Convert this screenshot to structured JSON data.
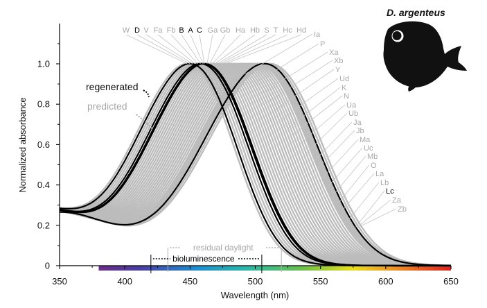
{
  "chart_data": {
    "type": "line",
    "title": "D. argenteus",
    "xlabel": "Wavelength (nm)",
    "ylabel": "Normalized absorbance",
    "xlim": [
      350,
      650
    ],
    "ylim": [
      0,
      1.0
    ],
    "x_ticks": [
      "350",
      "400",
      "450",
      "500",
      "550",
      "600",
      "650"
    ],
    "y_ticks": [
      "0",
      "0.2",
      "0.4",
      "0.6",
      "0.8",
      "1.0"
    ],
    "grid": false,
    "legend": [
      {
        "label": "regenerated",
        "color": "#000000"
      },
      {
        "label": "predicted",
        "color": "#a8a8a8"
      }
    ],
    "light_ranges": [
      {
        "label": "residual daylight",
        "range": [
          433,
          520
        ],
        "color": "#a8a8a8"
      },
      {
        "label": "bioluminescence",
        "range": [
          420,
          505
        ],
        "color": "#000000"
      }
    ],
    "spectrum_bar": {
      "range": [
        380,
        650
      ]
    },
    "series": [
      {
        "name": "W",
        "lambda_max": 448,
        "status": "predicted"
      },
      {
        "name": "D",
        "lambda_max": 450,
        "status": "regenerated"
      },
      {
        "name": "V",
        "lambda_max": 452,
        "status": "predicted"
      },
      {
        "name": "Fa",
        "lambda_max": 454,
        "status": "predicted"
      },
      {
        "name": "Fb",
        "lambda_max": 456,
        "status": "predicted"
      },
      {
        "name": "B",
        "lambda_max": 458,
        "status": "regenerated"
      },
      {
        "name": "A",
        "lambda_max": 460,
        "status": "regenerated"
      },
      {
        "name": "C",
        "lambda_max": 461,
        "status": "regenerated"
      },
      {
        "name": "Ga",
        "lambda_max": 463,
        "status": "predicted"
      },
      {
        "name": "Gb",
        "lambda_max": 465,
        "status": "predicted"
      },
      {
        "name": "Ha",
        "lambda_max": 467,
        "status": "predicted"
      },
      {
        "name": "Hb",
        "lambda_max": 469,
        "status": "predicted"
      },
      {
        "name": "S",
        "lambda_max": 471,
        "status": "predicted"
      },
      {
        "name": "T",
        "lambda_max": 473,
        "status": "predicted"
      },
      {
        "name": "Hc",
        "lambda_max": 475,
        "status": "predicted"
      },
      {
        "name": "Hd",
        "lambda_max": 477,
        "status": "predicted"
      },
      {
        "name": "Ia",
        "lambda_max": 479,
        "status": "predicted"
      },
      {
        "name": "P",
        "lambda_max": 481,
        "status": "predicted"
      },
      {
        "name": "Xa",
        "lambda_max": 483,
        "status": "predicted"
      },
      {
        "name": "Xb",
        "lambda_max": 485,
        "status": "predicted"
      },
      {
        "name": "Y",
        "lambda_max": 487,
        "status": "predicted"
      },
      {
        "name": "Ud",
        "lambda_max": 489,
        "status": "predicted"
      },
      {
        "name": "K",
        "lambda_max": 491,
        "status": "predicted"
      },
      {
        "name": "N",
        "lambda_max": 493,
        "status": "predicted"
      },
      {
        "name": "Ua",
        "lambda_max": 495,
        "status": "predicted"
      },
      {
        "name": "Ub",
        "lambda_max": 497,
        "status": "predicted"
      },
      {
        "name": "Ja",
        "lambda_max": 499,
        "status": "predicted"
      },
      {
        "name": "Jb",
        "lambda_max": 501,
        "status": "predicted"
      },
      {
        "name": "Ma",
        "lambda_max": 502,
        "status": "predicted"
      },
      {
        "name": "Uc",
        "lambda_max": 503,
        "status": "predicted"
      },
      {
        "name": "Mb",
        "lambda_max": 504,
        "status": "predicted"
      },
      {
        "name": "O",
        "lambda_max": 505,
        "status": "predicted"
      },
      {
        "name": "La",
        "lambda_max": 505,
        "status": "predicted"
      },
      {
        "name": "Lb",
        "lambda_max": 506,
        "status": "predicted"
      },
      {
        "name": "Lc",
        "lambda_max": 507,
        "status": "regenerated"
      },
      {
        "name": "Za",
        "lambda_max": 509,
        "status": "predicted"
      },
      {
        "name": "Zb",
        "lambda_max": 511,
        "status": "predicted"
      }
    ]
  }
}
